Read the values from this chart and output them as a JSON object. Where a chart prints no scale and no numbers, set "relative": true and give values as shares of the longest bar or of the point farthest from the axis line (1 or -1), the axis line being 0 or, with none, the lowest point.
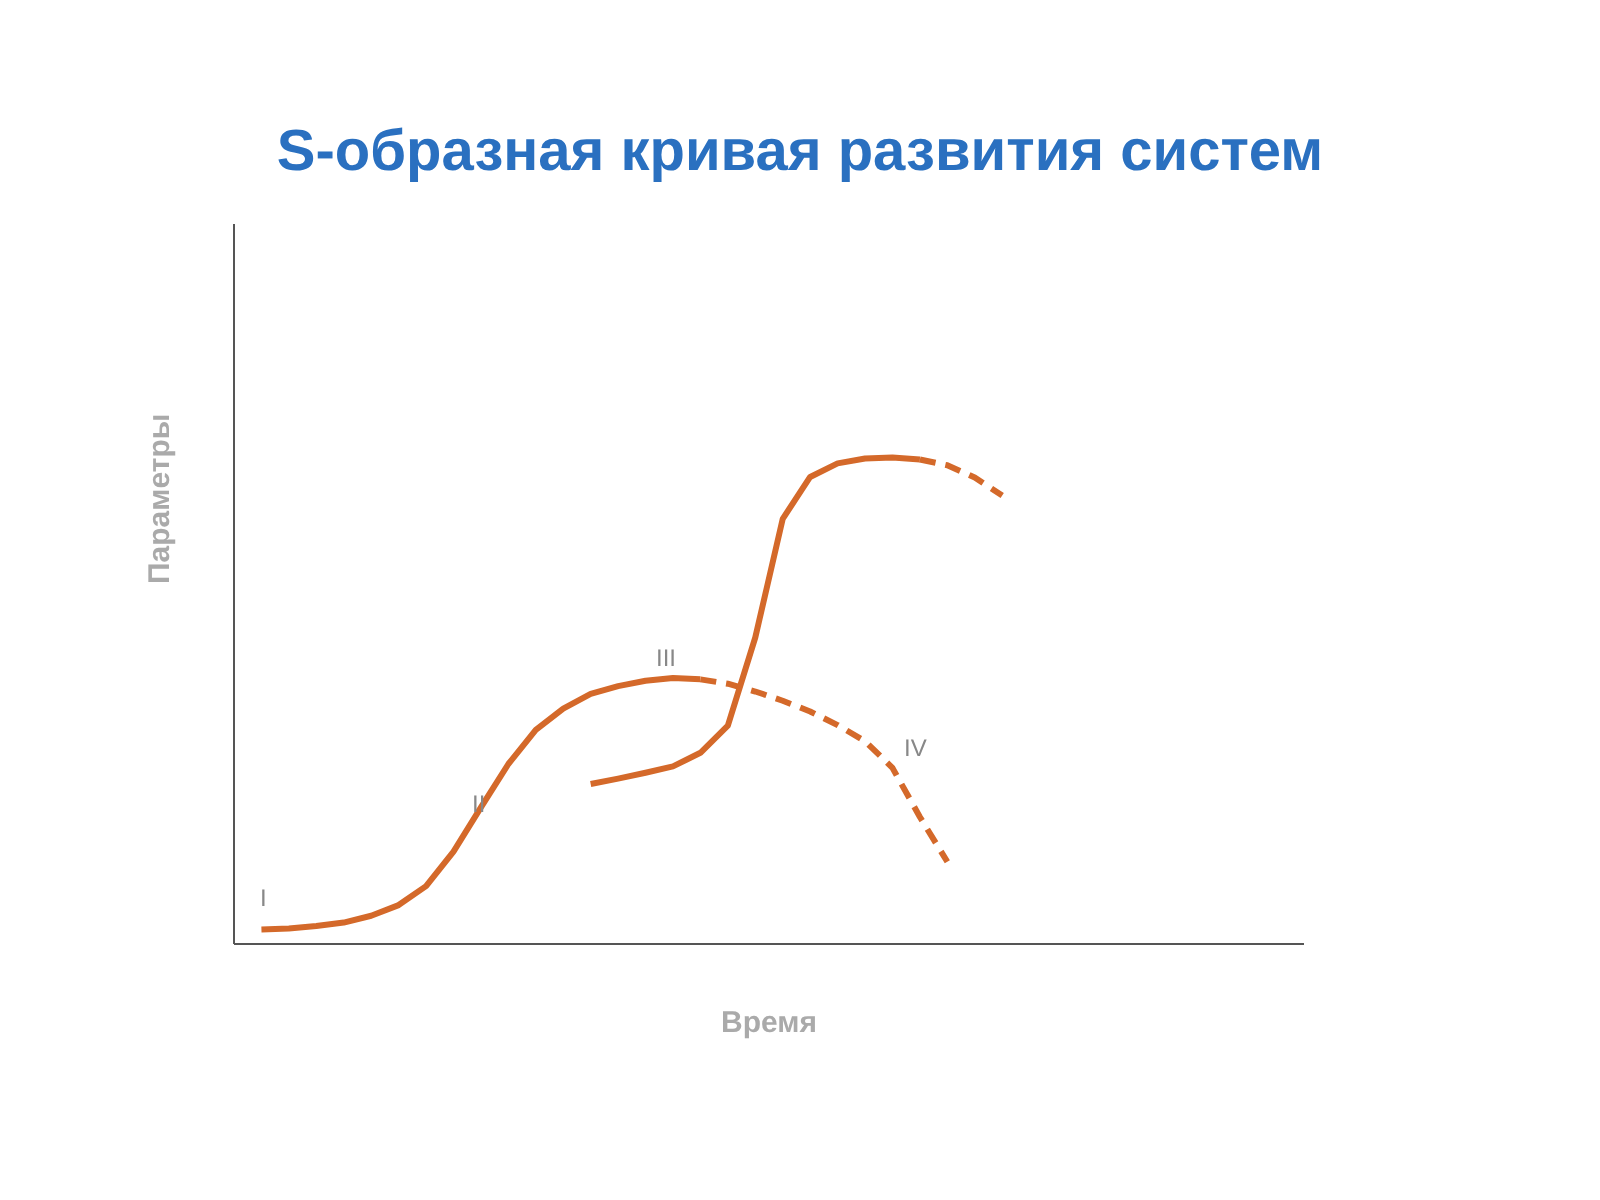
{
  "chart_data": {
    "type": "line",
    "title": "S-образная кривая развития систем",
    "xlabel": "Время",
    "ylabel": "Параметры",
    "relative": true,
    "grid": false,
    "legend": false,
    "marker": "none",
    "categories": [
      null,
      null,
      null,
      null,
      null,
      null,
      null,
      null,
      null,
      null,
      null,
      null,
      null,
      null,
      null,
      null,
      null,
      null,
      null,
      null,
      null,
      null,
      null,
      null,
      null,
      null,
      null,
      null,
      null,
      null,
      null,
      null,
      null,
      null,
      null,
      null,
      null,
      null,
      null,
      null
    ],
    "series": [
      {
        "color": "#d4692a",
        "line_style": "solid",
        "values": [
          null,
          0.03,
          0.032,
          0.037,
          0.044,
          0.058,
          0.08,
          0.119,
          0.19,
          0.281,
          0.37,
          0.44,
          0.484,
          0.514,
          0.53,
          0.541,
          0.547,
          0.544,
          null,
          null,
          null,
          null,
          null,
          null,
          null,
          null,
          null,
          null,
          null,
          null,
          null,
          null,
          null,
          null,
          null,
          null,
          null,
          null,
          null,
          null
        ]
      },
      {
        "color": "#d4692a",
        "line_style": "dashed",
        "values": [
          null,
          null,
          null,
          null,
          null,
          null,
          null,
          null,
          null,
          null,
          null,
          null,
          null,
          null,
          null,
          null,
          null,
          0.544,
          0.535,
          0.519,
          0.5,
          0.478,
          0.45,
          0.417,
          0.362,
          0.261,
          0.169,
          null,
          null,
          null,
          null,
          null,
          null,
          null,
          null,
          null,
          null,
          null,
          null,
          null
        ]
      },
      {
        "color": "#d4692a",
        "line_style": "solid",
        "values": [
          null,
          null,
          null,
          null,
          null,
          null,
          null,
          null,
          null,
          null,
          null,
          null,
          null,
          0.329,
          0.34,
          0.352,
          0.365,
          0.393,
          0.449,
          0.63,
          0.874,
          0.96,
          0.988,
          0.998,
          1,
          0.996,
          null,
          null,
          null,
          null,
          null,
          null,
          null,
          null,
          null,
          null,
          null,
          null,
          null,
          null
        ]
      },
      {
        "color": "#d4692a",
        "line_style": "dashed",
        "values": [
          null,
          null,
          null,
          null,
          null,
          null,
          null,
          null,
          null,
          null,
          null,
          null,
          null,
          null,
          null,
          null,
          null,
          null,
          null,
          null,
          null,
          null,
          null,
          null,
          null,
          0.996,
          0.984,
          0.959,
          0.922,
          null,
          null,
          null,
          null,
          null,
          null,
          null,
          null,
          null,
          null,
          null
        ]
      }
    ],
    "annotations": [
      "I",
      "II",
      "III",
      "IV"
    ]
  }
}
